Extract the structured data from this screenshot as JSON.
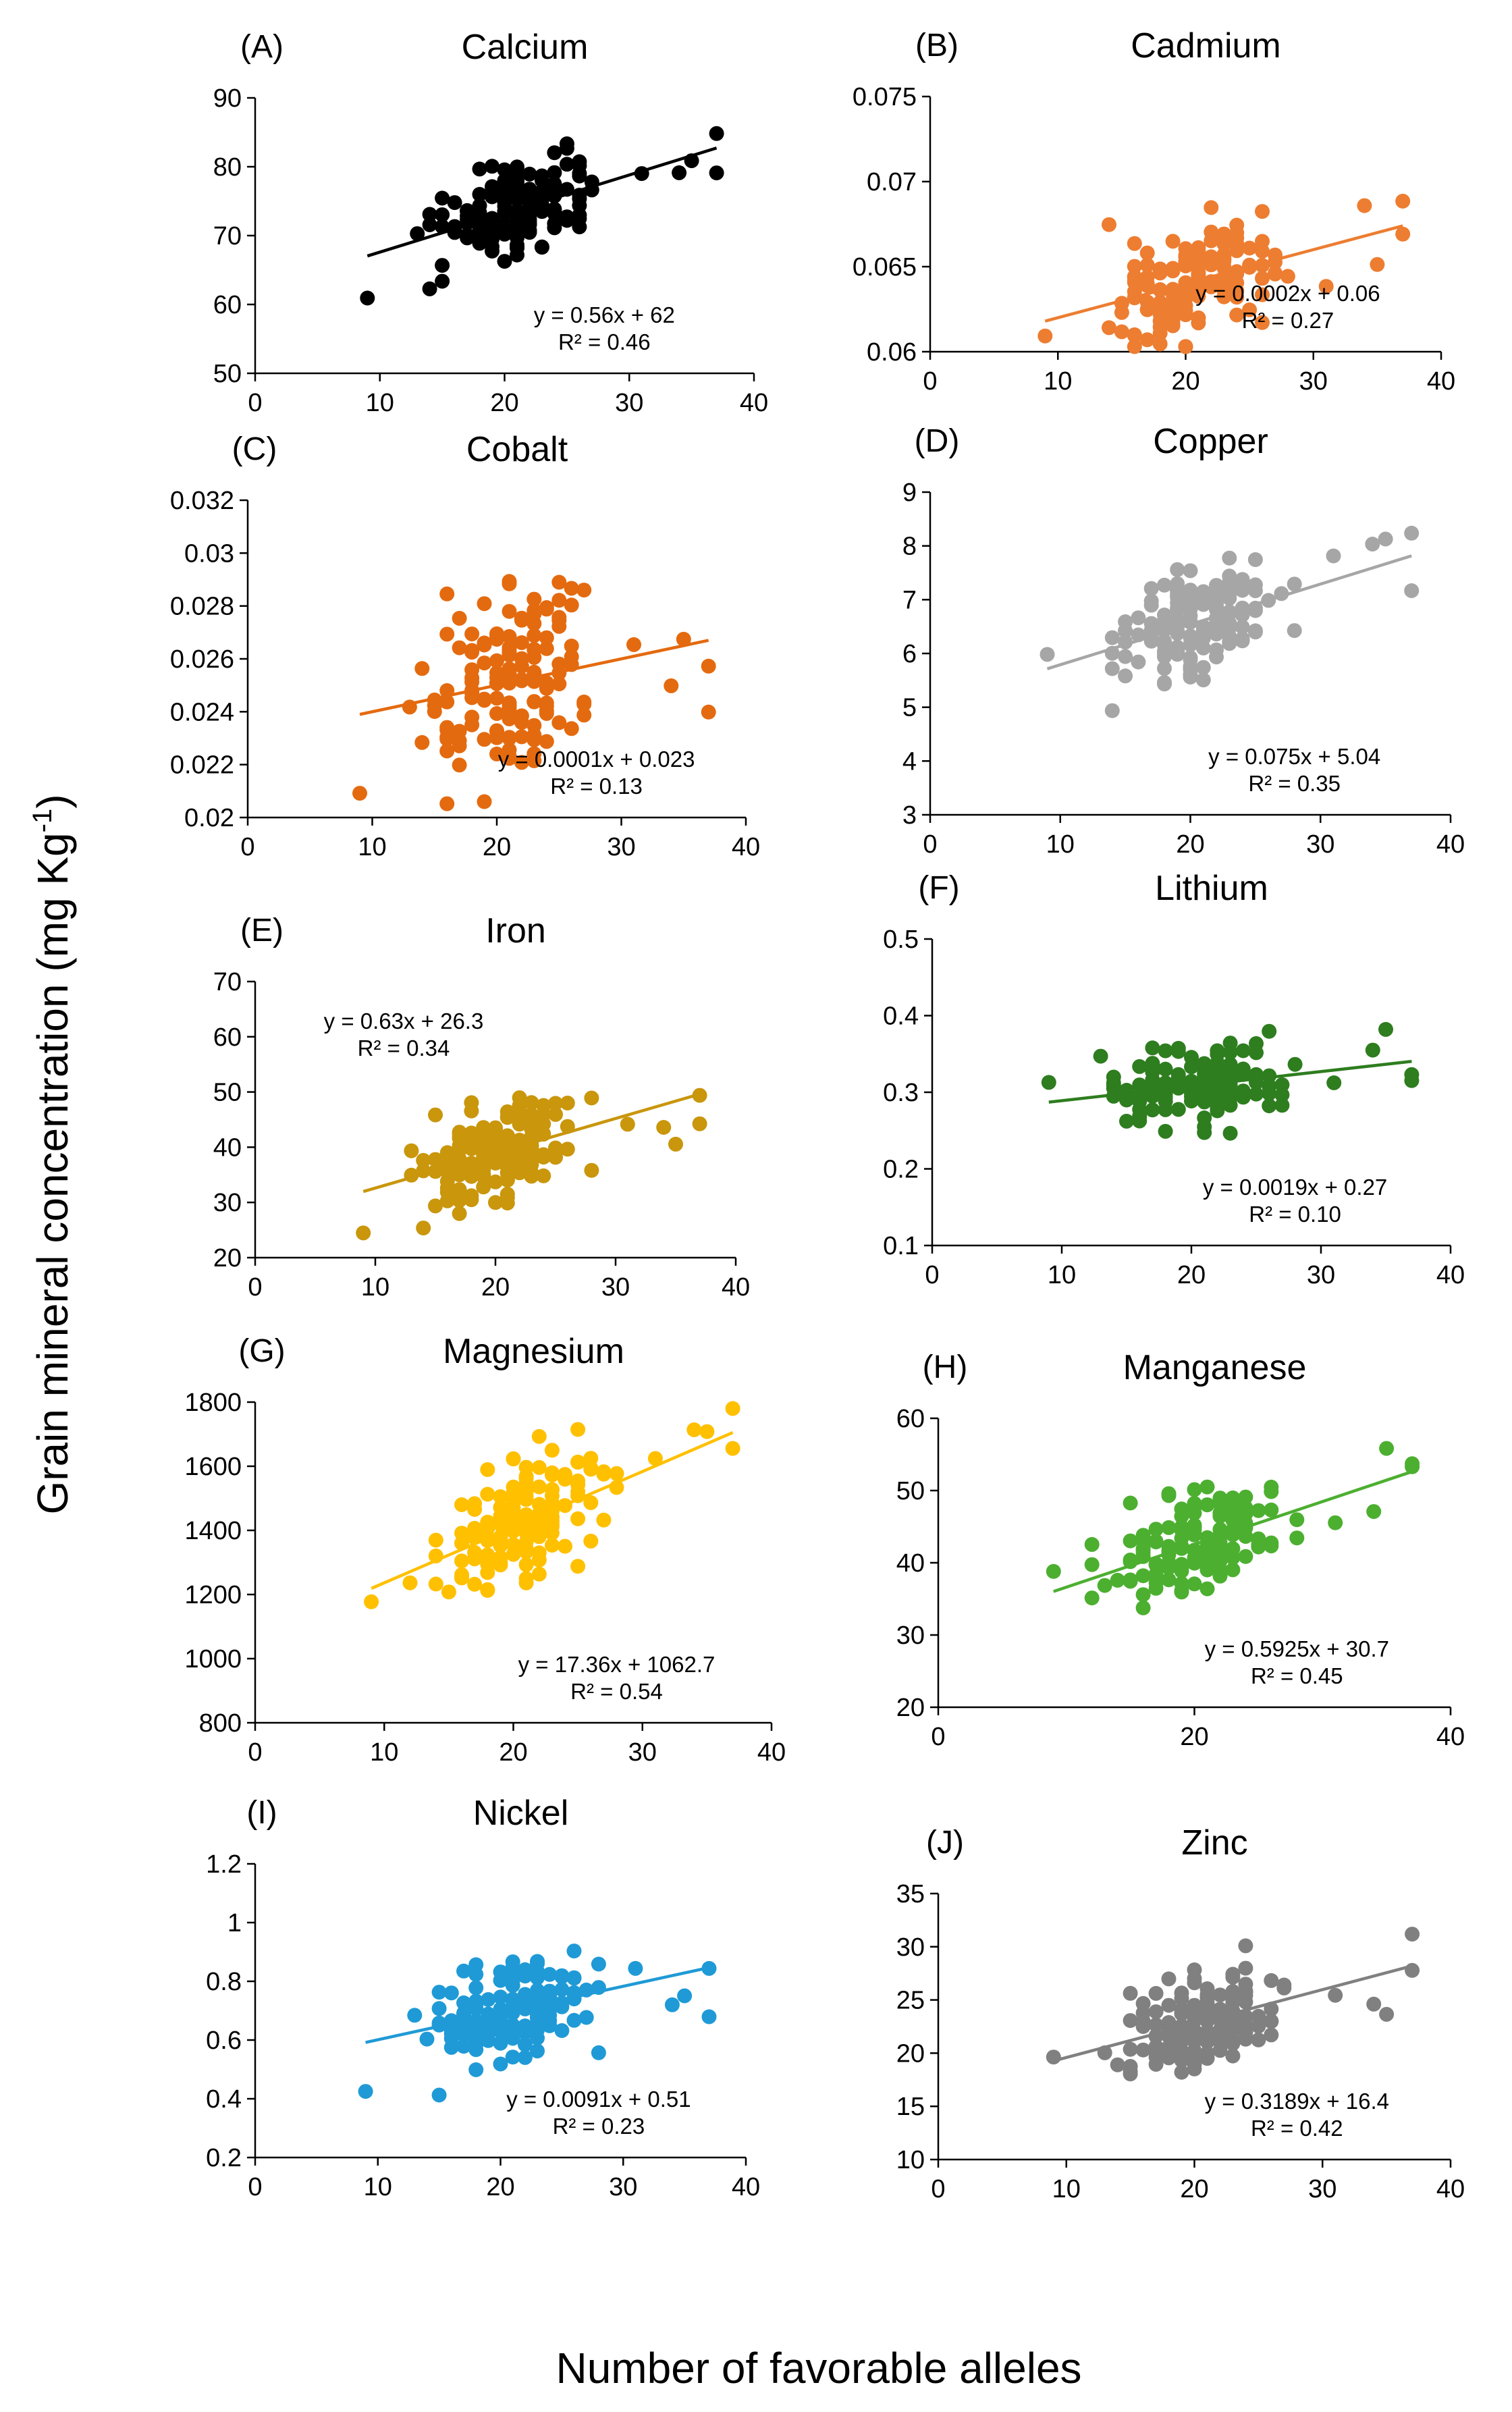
{
  "figure": {
    "ylabel": "Grain mineral concentration (mg Kg",
    "ylabel_sup": "-1",
    "ylabel_close": ")",
    "xlabel": "Number of favorable alleles"
  },
  "chart_data": [
    {
      "panel": "A",
      "letter_text": "(A)",
      "title": "Calcium",
      "type": "scatter",
      "color": "#000000",
      "xlim": [
        0,
        40
      ],
      "xticks": [
        "0",
        "10",
        "20",
        "30",
        "40"
      ],
      "ylim": [
        50,
        90
      ],
      "yticks": [
        "50",
        "60",
        "70",
        "80",
        "90"
      ],
      "fit": {
        "slope": 0.56,
        "intercept": 62,
        "r2": 0.46
      },
      "equation": "y = 0.56x + 62",
      "r2_text": "R² = 0.46",
      "label_pos": "bottom-right",
      "n": 150,
      "seed": 11,
      "noise": 3.4
    },
    {
      "panel": "B",
      "letter_text": "(B)",
      "title": "Cadmium",
      "type": "scatter",
      "color": "#ED7D31",
      "xlim": [
        0,
        40
      ],
      "xticks": [
        "0",
        "10",
        "20",
        "30",
        "40"
      ],
      "ylim": [
        0.06,
        0.075
      ],
      "yticks": [
        "0.06",
        "0.065",
        "0.07",
        "0.075"
      ],
      "fit": {
        "slope": 0.0002,
        "intercept": 0.06,
        "r2": 0.27
      },
      "equation": "y = 0.0002x + 0.06",
      "r2_text": "R² = 0.27",
      "label_pos": "bottom-right",
      "n": 150,
      "seed": 23,
      "noise": 0.0017
    },
    {
      "panel": "C",
      "letter_text": "(C)",
      "title": "Cobalt",
      "type": "scatter",
      "color": "#E46A0F",
      "xlim": [
        0,
        40
      ],
      "xticks": [
        "0",
        "10",
        "20",
        "30",
        "40"
      ],
      "ylim": [
        0.02,
        0.032
      ],
      "yticks": [
        "0.02",
        "0.022",
        "0.024",
        "0.026",
        "0.028",
        "0.03",
        "0.032"
      ],
      "fit": {
        "slope": 0.0001,
        "intercept": 0.023,
        "r2": 0.13
      },
      "equation": "y = 0.0001x + 0.023",
      "r2_text": "R² = 0.13",
      "label_pos": "bottom-right",
      "n": 150,
      "seed": 37,
      "noise": 0.0019
    },
    {
      "panel": "D",
      "letter_text": "(D)",
      "title": "Copper",
      "type": "scatter",
      "color": "#A6A6A6",
      "xlim": [
        0,
        40
      ],
      "xticks": [
        "0",
        "10",
        "20",
        "30",
        "40"
      ],
      "ylim": [
        3,
        9
      ],
      "yticks": [
        "3",
        "4",
        "5",
        "6",
        "7",
        "8",
        "9"
      ],
      "fit": {
        "slope": 0.075,
        "intercept": 5.04,
        "r2": 0.35
      },
      "equation": "y = 0.075x + 5.04",
      "r2_text": "R² = 0.35",
      "label_pos": "bottom-right",
      "n": 150,
      "seed": 41,
      "noise": 0.48
    },
    {
      "panel": "E",
      "letter_text": "(E)",
      "title": "Iron",
      "type": "scatter",
      "color": "#C9960C",
      "xlim": [
        0,
        40
      ],
      "xticks": [
        "0",
        "10",
        "20",
        "30",
        "40"
      ],
      "ylim": [
        20,
        70
      ],
      "yticks": [
        "20",
        "30",
        "40",
        "50",
        "60",
        "70"
      ],
      "fit": {
        "slope": 0.63,
        "intercept": 26.3,
        "r2": 0.34
      },
      "equation": "y = 0.63x + 26.3",
      "r2_text": "R² = 0.34",
      "label_pos": "top-left",
      "n": 150,
      "seed": 53,
      "noise": 4.8
    },
    {
      "panel": "F",
      "letter_text": "(F)",
      "title": "Lithium",
      "type": "scatter",
      "color": "#2E7D1F",
      "xlim": [
        0,
        40
      ],
      "xticks": [
        "0",
        "10",
        "20",
        "30",
        "40"
      ],
      "ylim": [
        0.1,
        0.5
      ],
      "yticks": [
        "0.1",
        "0.2",
        "0.3",
        "0.4",
        "0.5"
      ],
      "fit": {
        "slope": 0.0019,
        "intercept": 0.27,
        "r2": 0.1
      },
      "equation": "y = 0.0019x + 0.27",
      "r2_text": "R² = 0.10",
      "label_pos": "bottom-right",
      "n": 150,
      "seed": 61,
      "noise": 0.026
    },
    {
      "panel": "G",
      "letter_text": "(G)",
      "title": "Magnesium",
      "type": "scatter",
      "color": "#FFC000",
      "xlim": [
        0,
        40
      ],
      "xticks": [
        "0",
        "10",
        "20",
        "30",
        "40"
      ],
      "ylim": [
        800,
        1800
      ],
      "yticks": [
        "800",
        "1000",
        "1200",
        "1400",
        "1600",
        "1800"
      ],
      "fit": {
        "slope": 17.36,
        "intercept": 1062.7,
        "r2": 0.54
      },
      "equation": "y = 17.36x + 1062.7",
      "r2_text": "R² = 0.54",
      "label_pos": "bottom-right",
      "n": 150,
      "seed": 71,
      "noise": 85
    },
    {
      "panel": "H",
      "letter_text": "(H)",
      "title": "Manganese",
      "type": "scatter",
      "color": "#4CAF30",
      "xlim": [
        0,
        40
      ],
      "xticks": [
        "0",
        "20",
        "40"
      ],
      "ylim": [
        20,
        60
      ],
      "yticks": [
        "20",
        "30",
        "40",
        "50",
        "60"
      ],
      "fit": {
        "slope": 0.5925,
        "intercept": 30.7,
        "r2": 0.45
      },
      "equation": "y = 0.5925x + 30.7",
      "r2_text": "R² = 0.45",
      "label_pos": "bottom-right",
      "n": 150,
      "seed": 83,
      "noise": 3.5
    },
    {
      "panel": "I",
      "letter_text": "(I)",
      "title": "Nickel",
      "type": "scatter",
      "color": "#1F9AD6",
      "xlim": [
        0,
        40
      ],
      "xticks": [
        "0",
        "10",
        "20",
        "30",
        "40"
      ],
      "ylim": [
        0.2,
        1.2
      ],
      "yticks": [
        "0.2",
        "0.4",
        "0.6",
        "0.8",
        "1",
        "1.2"
      ],
      "fit": {
        "slope": 0.0091,
        "intercept": 0.51,
        "r2": 0.23
      },
      "equation": "y = 0.0091x + 0.51",
      "r2_text": "R² = 0.23",
      "label_pos": "bottom-right",
      "n": 150,
      "seed": 97,
      "noise": 0.085
    },
    {
      "panel": "J",
      "letter_text": "(J)",
      "title": "Zinc",
      "type": "scatter",
      "color": "#808080",
      "xlim": [
        0,
        40
      ],
      "xticks": [
        "0",
        "10",
        "20",
        "30",
        "40"
      ],
      "ylim": [
        10,
        35
      ],
      "yticks": [
        "10",
        "15",
        "20",
        "25",
        "30",
        "35"
      ],
      "fit": {
        "slope": 0.3189,
        "intercept": 16.4,
        "r2": 0.42
      },
      "equation": "y = 0.3189x + 16.4",
      "r2_text": "R² = 0.42",
      "label_pos": "bottom-right",
      "n": 150,
      "seed": 101,
      "noise": 2.2
    }
  ]
}
